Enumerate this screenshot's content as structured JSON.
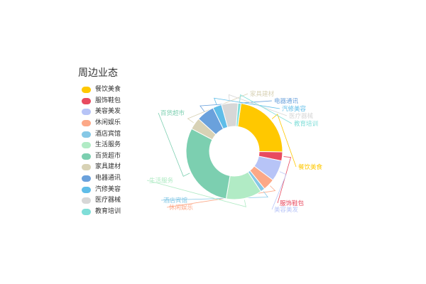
{
  "page": {
    "title": "周边业态"
  },
  "chart_data": {
    "type": "pie",
    "variant": "donut",
    "title": "周边业态",
    "legend_position": "left",
    "categories": [
      "餐饮美食",
      "服饰鞋包",
      "美容美发",
      "休闲娱乐",
      "酒店宾馆",
      "生活服务",
      "百货超市",
      "家具建材",
      "电器通讯",
      "汽修美容",
      "医疗器械",
      "教育培训"
    ],
    "values": [
      23,
      3,
      7,
      4,
      1.5,
      12,
      30,
      4,
      6,
      3,
      5.5,
      1
    ],
    "colors": [
      "#ffc800",
      "#e84a5f",
      "#b7c4f7",
      "#fca887",
      "#86c8e6",
      "#b1ebc5",
      "#7ccfb0",
      "#d8d2b5",
      "#6aa1dc",
      "#5fbde8",
      "#d7d7d7",
      "#7fded8"
    ]
  }
}
